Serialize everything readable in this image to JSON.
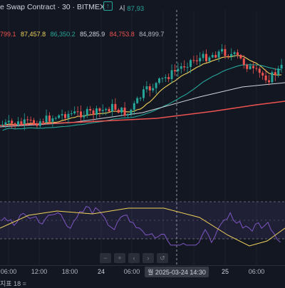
{
  "header": {
    "title": "e Swap Contract · 30 · BITMEX",
    "open_prefix": "시",
    "open_value": "87,93",
    "symbol_icon": "up-arrow-icon"
  },
  "moving_averages": [
    {
      "value": "799.1",
      "color": "#ef5350"
    },
    {
      "value": "87,457.8",
      "color": "#f0d35b"
    },
    {
      "value": "86,350.2",
      "color": "#26a69a"
    },
    {
      "value": "85,285.9",
      "color": "#d1d4dc"
    },
    {
      "value": "84,753.8",
      "color": "#ef5350"
    },
    {
      "value": "84,899.7",
      "color": "#b2b5be"
    }
  ],
  "xaxis": {
    "ticks": [
      {
        "label": "06:00"
      },
      {
        "label": "12:00"
      },
      {
        "label": "18:00"
      },
      {
        "label": "24",
        "bold": true
      },
      {
        "label": "06:00"
      },
      {
        "label": "25",
        "bold": true
      },
      {
        "label": "06:00"
      }
    ],
    "crosshair_label": "월 2025-03-24  14:30"
  },
  "rsi": {
    "label": "지표 18",
    "glyph": "≡"
  },
  "nav_icons": [
    "minus-icon",
    "plus-icon",
    "scroll-left-icon",
    "scroll-right-icon",
    "reset-icon"
  ],
  "colors": {
    "up": "#26a69a",
    "down": "#ef5350",
    "ma_yellow": "#f0d35b",
    "ma_teal": "#26a69a",
    "ma_white": "#d1d4dc",
    "ma_red": "#ef5350",
    "rsi_line": "#7e57c2",
    "rsi_ma": "#f0d35b",
    "rsi_band": "#7e57c2"
  }
}
